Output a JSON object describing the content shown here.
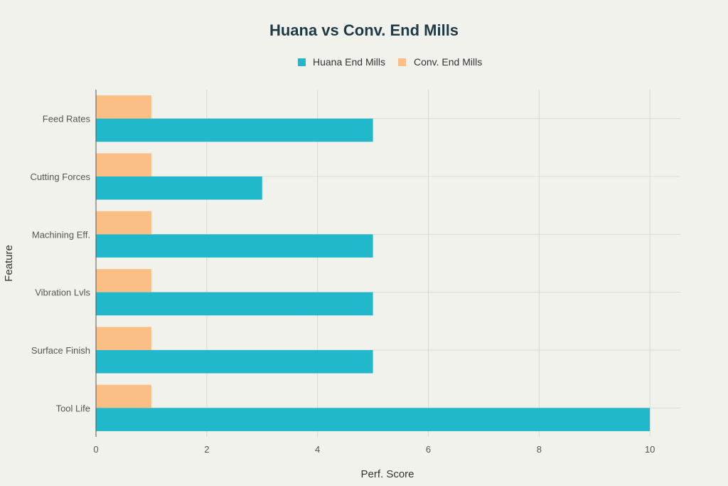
{
  "chart_data": {
    "type": "bar",
    "orientation": "horizontal",
    "title": "Huana vs Conv. End Mills",
    "xlabel": "Perf. Score",
    "ylabel": "Feature",
    "categories": [
      "Feed Rates",
      "Cutting Forces",
      "Machining Eff.",
      "Vibration Lvls",
      "Surface Finish",
      "Tool Life"
    ],
    "series": [
      {
        "name": "Huana End Mills",
        "color": "#21b8cc",
        "values": [
          5,
          3,
          5,
          5,
          5,
          10
        ]
      },
      {
        "name": "Conv. End Mills",
        "color": "#fbbf85",
        "values": [
          1,
          1,
          1,
          1,
          1,
          1
        ]
      }
    ],
    "xlim": [
      0,
      10.55
    ],
    "xticks": [
      0,
      2,
      4,
      6,
      8,
      10
    ],
    "grid": true,
    "legend_position": "top"
  }
}
